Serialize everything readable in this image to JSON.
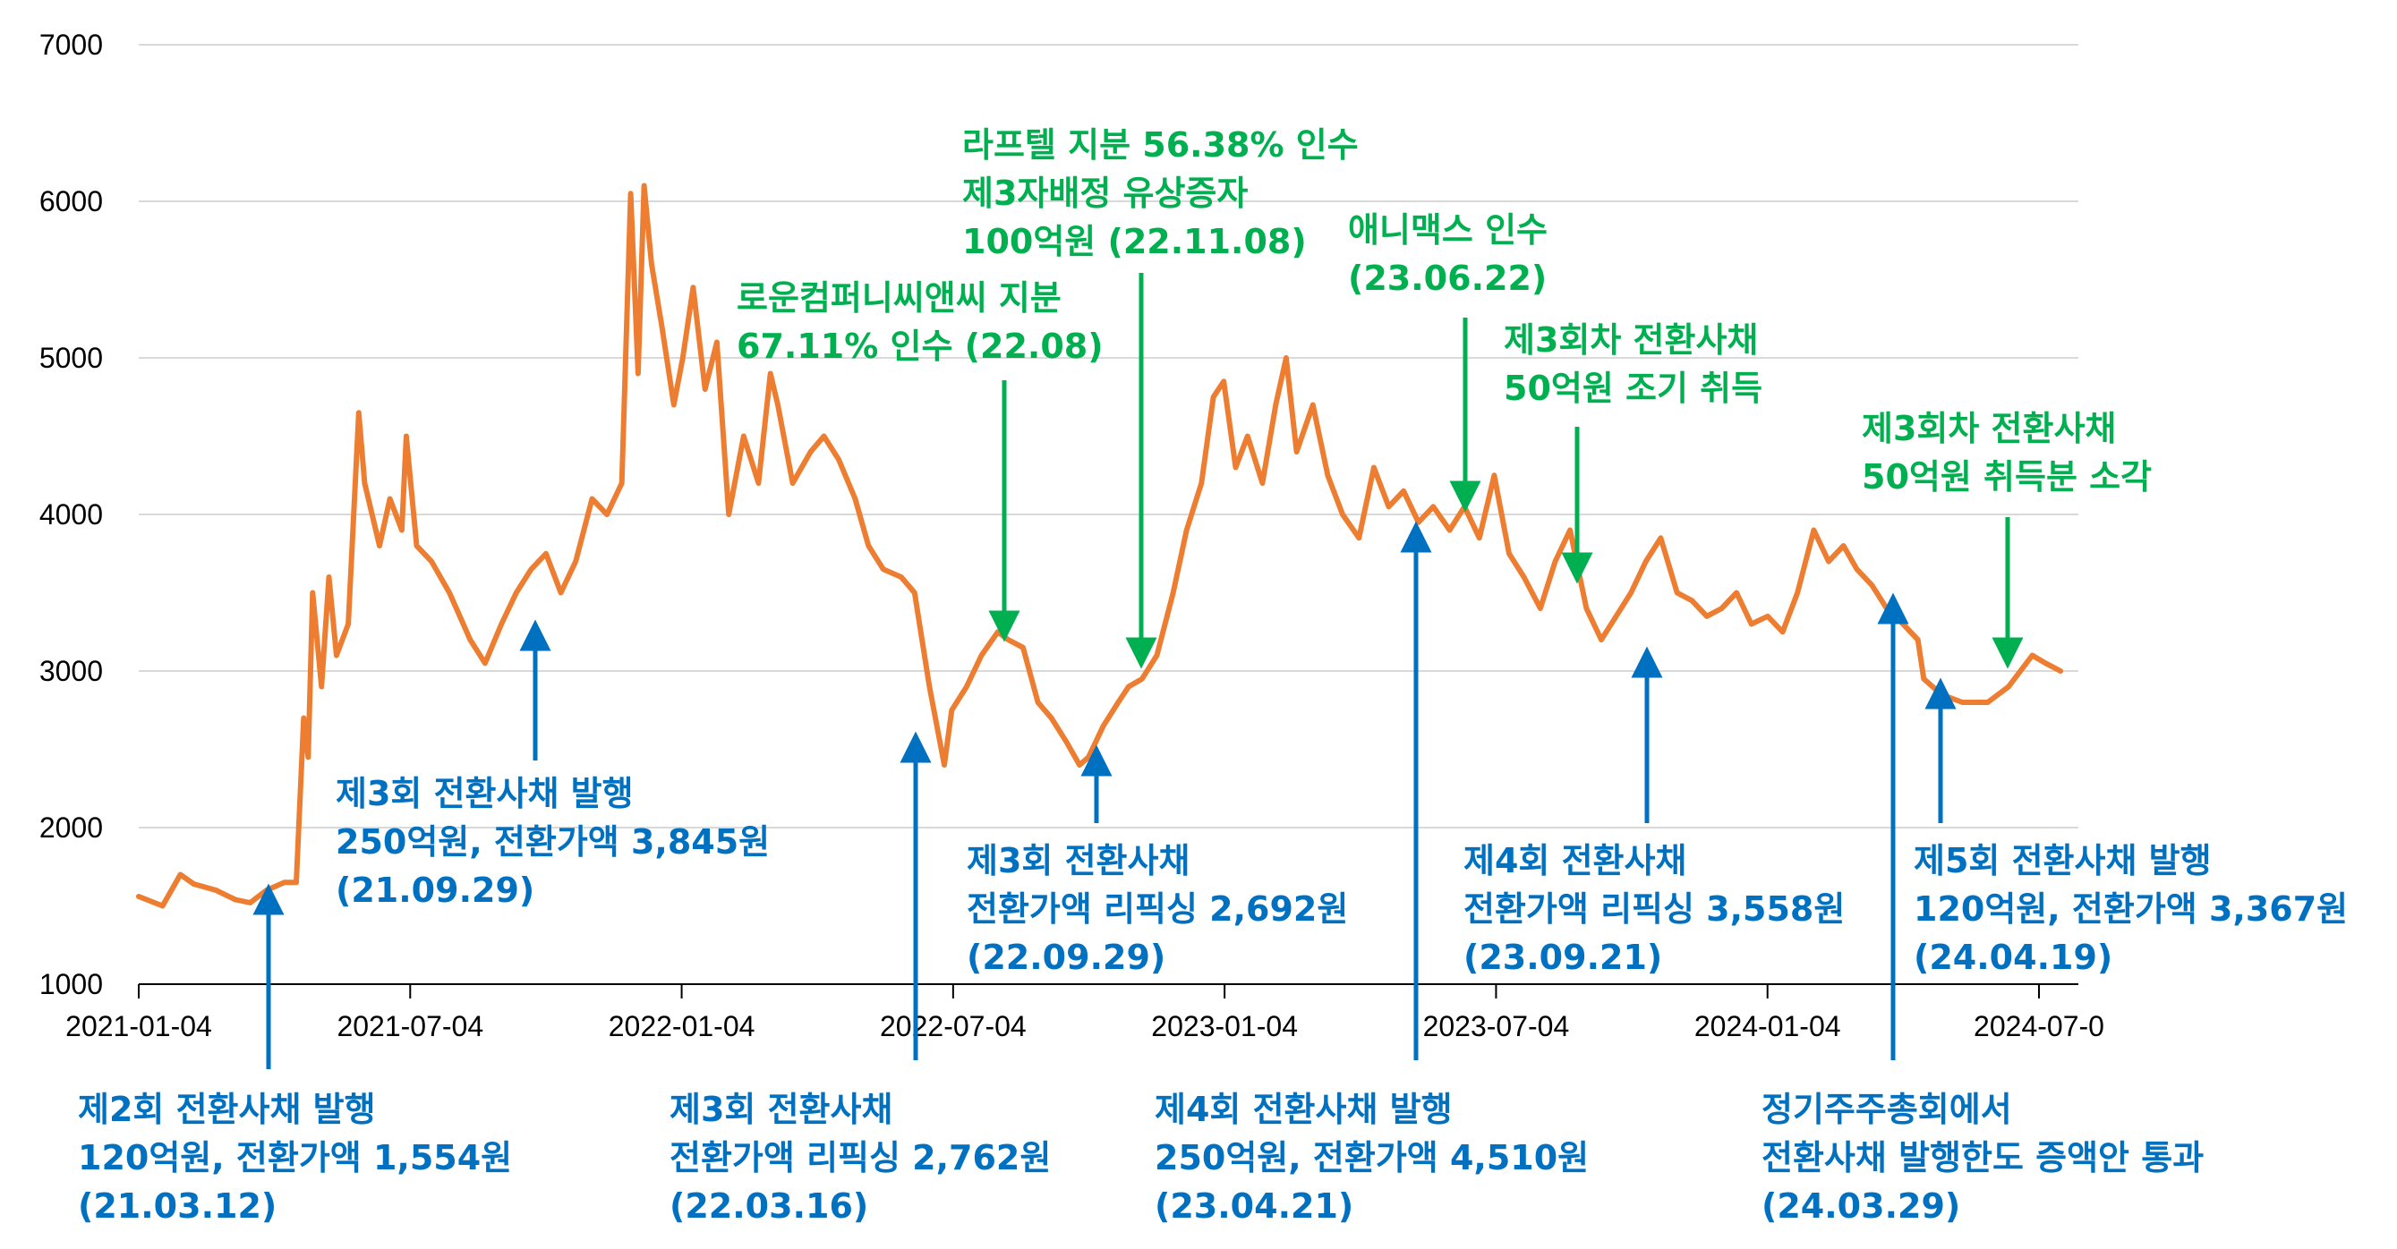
{
  "chart_data": {
    "type": "line",
    "title": "",
    "xlabel": "",
    "ylabel": "",
    "ylim": [
      1000,
      7000
    ],
    "yticks": [
      1000,
      2000,
      3000,
      4000,
      5000,
      6000,
      7000
    ],
    "xticks": [
      "2021-01-04",
      "2021-07-04",
      "2022-01-04",
      "2022-07-04",
      "2023-01-04",
      "2023-07-04",
      "2024-01-04",
      "2024-07-0"
    ],
    "grid": "horizontal",
    "series": [
      {
        "color": "#ED7D31",
        "points": [
          [
            "2021-01-04",
            1560
          ],
          [
            "2021-01-20",
            1500
          ],
          [
            "2021-02-01",
            1700
          ],
          [
            "2021-02-10",
            1640
          ],
          [
            "2021-02-25",
            1600
          ],
          [
            "2021-03-10",
            1540
          ],
          [
            "2021-03-20",
            1520
          ],
          [
            "2021-03-31",
            1600
          ],
          [
            "2021-04-12",
            1650
          ],
          [
            "2021-04-20",
            1650
          ],
          [
            "2021-04-25",
            2700
          ],
          [
            "2021-04-28",
            2450
          ],
          [
            "2021-05-01",
            3500
          ],
          [
            "2021-05-07",
            2900
          ],
          [
            "2021-05-12",
            3600
          ],
          [
            "2021-05-17",
            3100
          ],
          [
            "2021-05-25",
            3300
          ],
          [
            "2021-06-01",
            4650
          ],
          [
            "2021-06-05",
            4200
          ],
          [
            "2021-06-15",
            3800
          ],
          [
            "2021-06-22",
            4100
          ],
          [
            "2021-06-30",
            3900
          ],
          [
            "2021-07-03",
            4500
          ],
          [
            "2021-07-10",
            3800
          ],
          [
            "2021-07-20",
            3700
          ],
          [
            "2021-08-01",
            3500
          ],
          [
            "2021-08-15",
            3200
          ],
          [
            "2021-08-25",
            3050
          ],
          [
            "2021-09-05",
            3300
          ],
          [
            "2021-09-15",
            3500
          ],
          [
            "2021-09-25",
            3650
          ],
          [
            "2021-10-05",
            3750
          ],
          [
            "2021-10-15",
            3500
          ],
          [
            "2021-10-25",
            3700
          ],
          [
            "2021-11-05",
            4100
          ],
          [
            "2021-11-15",
            4000
          ],
          [
            "2021-11-25",
            4200
          ],
          [
            "2021-12-01",
            6050
          ],
          [
            "2021-12-06",
            4900
          ],
          [
            "2021-12-10",
            6100
          ],
          [
            "2021-12-15",
            5600
          ],
          [
            "2021-12-22",
            5200
          ],
          [
            "2021-12-30",
            4700
          ],
          [
            "2022-01-05",
            5000
          ],
          [
            "2022-01-12",
            5450
          ],
          [
            "2022-01-20",
            4800
          ],
          [
            "2022-01-28",
            5100
          ],
          [
            "2022-02-05",
            4000
          ],
          [
            "2022-02-15",
            4500
          ],
          [
            "2022-02-25",
            4200
          ],
          [
            "2022-03-05",
            4900
          ],
          [
            "2022-03-10",
            4700
          ],
          [
            "2022-03-20",
            4200
          ],
          [
            "2022-04-01",
            4400
          ],
          [
            "2022-04-10",
            4500
          ],
          [
            "2022-04-20",
            4350
          ],
          [
            "2022-05-01",
            4100
          ],
          [
            "2022-05-10",
            3800
          ],
          [
            "2022-05-20",
            3650
          ],
          [
            "2022-06-01",
            3600
          ],
          [
            "2022-06-10",
            3500
          ],
          [
            "2022-06-20",
            2900
          ],
          [
            "2022-06-30",
            2400
          ],
          [
            "2022-07-05",
            2750
          ],
          [
            "2022-07-15",
            2900
          ],
          [
            "2022-07-25",
            3100
          ],
          [
            "2022-08-05",
            3250
          ],
          [
            "2022-08-12",
            3200
          ],
          [
            "2022-08-22",
            3150
          ],
          [
            "2022-09-01",
            2800
          ],
          [
            "2022-09-10",
            2700
          ],
          [
            "2022-09-20",
            2550
          ],
          [
            "2022-09-29",
            2400
          ],
          [
            "2022-10-05",
            2450
          ],
          [
            "2022-10-15",
            2650
          ],
          [
            "2022-10-25",
            2800
          ],
          [
            "2022-11-01",
            2900
          ],
          [
            "2022-11-10",
            2950
          ],
          [
            "2022-11-20",
            3100
          ],
          [
            "2022-12-01",
            3500
          ],
          [
            "2022-12-10",
            3900
          ],
          [
            "2022-12-20",
            4200
          ],
          [
            "2022-12-28",
            4750
          ],
          [
            "2023-01-04",
            4850
          ],
          [
            "2023-01-12",
            4300
          ],
          [
            "2023-01-20",
            4500
          ],
          [
            "2023-01-30",
            4200
          ],
          [
            "2023-02-08",
            4700
          ],
          [
            "2023-02-15",
            5000
          ],
          [
            "2023-02-22",
            4400
          ],
          [
            "2023-03-05",
            4700
          ],
          [
            "2023-03-15",
            4250
          ],
          [
            "2023-03-25",
            4000
          ],
          [
            "2023-04-05",
            3850
          ],
          [
            "2023-04-15",
            4300
          ],
          [
            "2023-04-25",
            4050
          ],
          [
            "2023-05-05",
            4150
          ],
          [
            "2023-05-15",
            3950
          ],
          [
            "2023-05-25",
            4050
          ],
          [
            "2023-06-05",
            3900
          ],
          [
            "2023-06-15",
            4050
          ],
          [
            "2023-06-25",
            3850
          ],
          [
            "2023-07-05",
            4250
          ],
          [
            "2023-07-15",
            3750
          ],
          [
            "2023-07-25",
            3600
          ],
          [
            "2023-08-05",
            3400
          ],
          [
            "2023-08-15",
            3700
          ],
          [
            "2023-08-25",
            3900
          ],
          [
            "2023-09-05",
            3400
          ],
          [
            "2023-09-15",
            3200
          ],
          [
            "2023-09-25",
            3350
          ],
          [
            "2023-10-05",
            3500
          ],
          [
            "2023-10-15",
            3700
          ],
          [
            "2023-10-25",
            3850
          ],
          [
            "2023-11-05",
            3500
          ],
          [
            "2023-11-15",
            3450
          ],
          [
            "2023-11-25",
            3350
          ],
          [
            "2023-12-05",
            3400
          ],
          [
            "2023-12-15",
            3500
          ],
          [
            "2023-12-25",
            3300
          ],
          [
            "2024-01-05",
            3350
          ],
          [
            "2024-01-15",
            3250
          ],
          [
            "2024-01-25",
            3500
          ],
          [
            "2024-02-05",
            3900
          ],
          [
            "2024-02-15",
            3700
          ],
          [
            "2024-02-25",
            3800
          ],
          [
            "2024-03-05",
            3650
          ],
          [
            "2024-03-15",
            3550
          ],
          [
            "2024-03-25",
            3400
          ],
          [
            "2024-04-05",
            3300
          ],
          [
            "2024-04-15",
            3200
          ],
          [
            "2024-04-19",
            2950
          ],
          [
            "2024-05-01",
            2850
          ],
          [
            "2024-05-15",
            2800
          ],
          [
            "2024-06-01",
            2800
          ],
          [
            "2024-06-15",
            2900
          ],
          [
            "2024-07-01",
            3100
          ],
          [
            "2024-07-10",
            3050
          ],
          [
            "2024-07-20",
            3000
          ]
        ]
      }
    ],
    "annotations": [
      {
        "date": "2021-03-12",
        "lines": [
          "제2회 전환사채 발행",
          "120억원, 전환가액 1,554원",
          "(21.03.12)"
        ],
        "color": "#0070C0",
        "arrow": "up"
      },
      {
        "date": "2021-09-29",
        "lines": [
          "제3회 전환사채 발행",
          "250억원, 전환가액 3,845원",
          "(21.09.29)"
        ],
        "color": "#0070C0",
        "arrow": "up"
      },
      {
        "date": "2022-03-16",
        "lines": [
          "제3회 전환사채",
          "전환가액 리픽싱 2,762원",
          "(22.03.16)"
        ],
        "color": "#0070C0",
        "arrow": "up"
      },
      {
        "date": "2022-09-29",
        "lines": [
          "제3회 전환사채",
          "전환가액 리픽싱 2,692원",
          "(22.09.29)"
        ],
        "color": "#0070C0",
        "arrow": "up"
      },
      {
        "date": "2023-04-21",
        "lines": [
          "제4회 전환사채 발행",
          "250억원, 전환가액 4,510원",
          "(23.04.21)"
        ],
        "color": "#0070C0",
        "arrow": "up"
      },
      {
        "date": "2023-09-21",
        "lines": [
          "제4회 전환사채",
          "전환가액 리픽싱 3,558원",
          "(23.09.21)"
        ],
        "color": "#0070C0",
        "arrow": "up"
      },
      {
        "date": "2024-03-29",
        "lines": [
          "정기주주총회에서",
          "전환사채 발행한도 증액안 통과",
          "(24.03.29)"
        ],
        "color": "#0070C0",
        "arrow": "up"
      },
      {
        "date": "2024-04-19",
        "lines": [
          "제5회 전환사채 발행",
          "120억원, 전환가액 3,367원",
          "(24.04.19)"
        ],
        "color": "#0070C0",
        "arrow": "up"
      },
      {
        "date": "2022-08",
        "lines": [
          "로운컴퍼니씨앤씨 지분",
          "67.11% 인수 (22.08)"
        ],
        "color": "#00B050",
        "arrow": "down"
      },
      {
        "date": "2022-11-08",
        "lines": [
          "라프텔 지분 56.38% 인수",
          "제3자배정 유상증자",
          "100억원 (22.11.08)"
        ],
        "color": "#00B050",
        "arrow": "down"
      },
      {
        "date": "2023-06-22",
        "lines": [
          "애니맥스 인수",
          "(23.06.22)"
        ],
        "color": "#00B050",
        "arrow": "down"
      },
      {
        "date": "",
        "lines": [
          "제3회차 전환사채",
          "50억원 조기 취득"
        ],
        "color": "#00B050",
        "arrow": "down"
      },
      {
        "date": "",
        "lines": [
          "제3회차 전환사채",
          "50억원 취득분 소각"
        ],
        "color": "#00B050",
        "arrow": "down"
      }
    ]
  }
}
